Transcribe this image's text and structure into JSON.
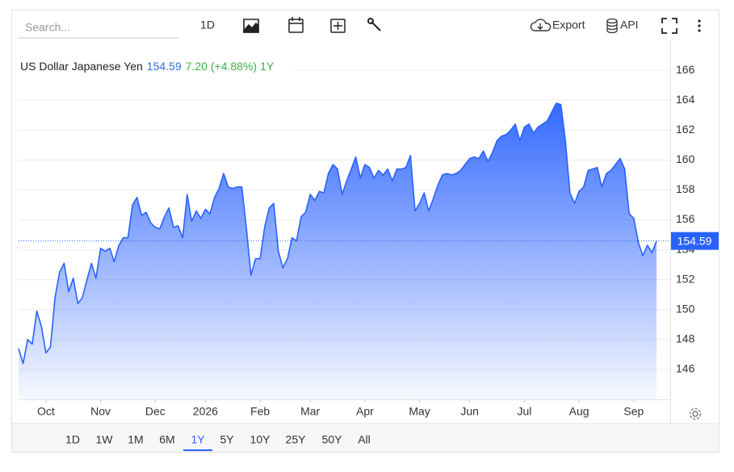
{
  "toolbar": {
    "search_placeholder": "Search...",
    "interval": "1D",
    "export": "Export",
    "api": "API"
  },
  "ranges": [
    "1D",
    "1W",
    "1M",
    "6M",
    "1Y",
    "5Y",
    "10Y",
    "25Y",
    "50Y",
    "All"
  ],
  "chart_data": {
    "type": "area",
    "title": "US Dollar Japanese Yen",
    "change": {
      "value": 7.2,
      "label": "7.20"
    },
    "change_percent": {
      "value": 4.88,
      "label": "(+4.88%)"
    },
    "period": "1Y",
    "color": "#2962ff",
    "values": [
      147.4,
      146.4,
      148.0,
      147.7,
      149.9,
      148.9,
      147.1,
      147.5,
      150.8,
      152.5,
      153.1,
      151.2,
      152.1,
      150.4,
      150.8,
      152.0,
      153.1,
      152.1,
      154.1,
      153.9,
      154.1,
      153.2,
      154.3,
      154.8,
      154.8,
      157.0,
      157.5,
      156.3,
      156.5,
      155.8,
      155.5,
      155.4,
      156.2,
      156.8,
      155.5,
      155.6,
      154.8,
      157.7,
      155.9,
      156.6,
      156.1,
      156.7,
      156.4,
      157.5,
      158.1,
      159.1,
      158.2,
      158.1,
      158.2,
      158.2,
      155.4,
      152.3,
      153.4,
      153.4,
      155.5,
      156.8,
      157.1,
      153.9,
      152.8,
      153.4,
      154.8,
      154.6,
      156.2,
      156.5,
      157.7,
      157.3,
      157.9,
      157.8,
      159.1,
      159.7,
      159.4,
      157.7,
      158.6,
      159.4,
      160.2,
      158.8,
      159.7,
      159.5,
      158.8,
      159.3,
      159.0,
      159.4,
      158.6,
      159.4,
      159.4,
      159.5,
      160.3,
      156.6,
      157.1,
      157.8,
      156.6,
      157.4,
      158.3,
      159.0,
      159.1,
      159.0,
      159.1,
      159.3,
      159.7,
      160.1,
      160.2,
      160.1,
      160.6,
      159.9,
      160.5,
      161.3,
      161.6,
      161.7,
      162.0,
      162.4,
      161.3,
      162.2,
      162.4,
      161.8,
      162.2,
      162.4,
      162.6,
      163.2,
      163.8,
      163.7,
      161.3,
      157.8,
      157.1,
      157.9,
      158.2,
      159.3,
      159.4,
      159.5,
      158.2,
      159.1,
      159.3,
      159.7,
      160.1,
      159.4,
      156.4,
      156.1,
      154.5,
      153.6,
      154.3,
      153.8,
      154.59
    ],
    "xlim": [
      0,
      143
    ],
    "xticks": [
      {
        "value": 6,
        "label": "Oct"
      },
      {
        "value": 18,
        "label": "Nov"
      },
      {
        "value": 30,
        "label": "Dec"
      },
      {
        "value": 41,
        "label": "2026"
      },
      {
        "value": 53,
        "label": "Feb"
      },
      {
        "value": 64,
        "label": "Mar"
      },
      {
        "value": 76,
        "label": "Apr"
      },
      {
        "value": 88,
        "label": "May"
      },
      {
        "value": 99,
        "label": "Jun"
      },
      {
        "value": 111,
        "label": "Jul"
      },
      {
        "value": 123,
        "label": "Aug"
      },
      {
        "value": 135,
        "label": "Sep"
      }
    ],
    "ylim": [
      144,
      168
    ],
    "yticks": [
      146,
      148,
      150,
      152,
      154,
      156,
      158,
      160,
      162,
      164,
      166
    ],
    "grid": true
  }
}
